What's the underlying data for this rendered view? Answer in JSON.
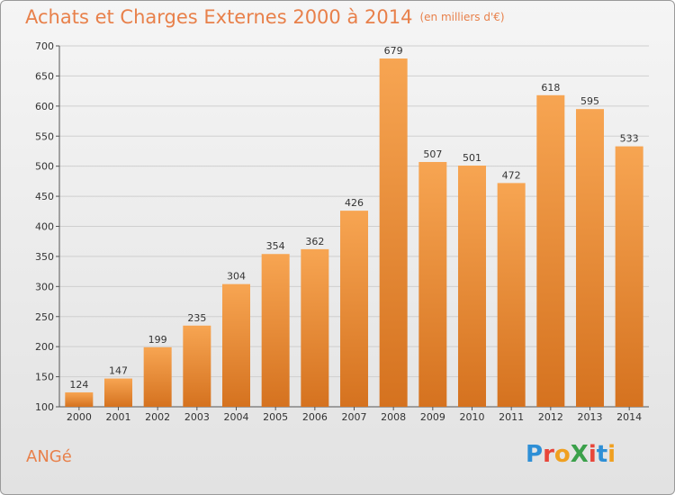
{
  "title": "Achats et Charges Externes 2000 à 2014",
  "unit": "(en milliers d'€)",
  "commune": "ANGé",
  "logo": {
    "text": "ProXiti",
    "letters": [
      {
        "char": "P",
        "color": "#2e8fd6"
      },
      {
        "char": "r",
        "color": "#e8463a"
      },
      {
        "char": "o",
        "color": "#f0a020"
      },
      {
        "char": "X",
        "color": "#3aa04a"
      },
      {
        "char": "i",
        "color": "#e8463a"
      },
      {
        "char": "t",
        "color": "#2e8fd6"
      },
      {
        "char": "i",
        "color": "#f0a020"
      }
    ]
  },
  "colors": {
    "bar_light": "#f7a552",
    "bar_dark": "#d5721f",
    "title": "#e8804a",
    "grid": "#cfcfcf"
  },
  "chart_data": {
    "type": "bar",
    "title": "Achats et Charges Externes 2000 à 2014",
    "xlabel": "",
    "ylabel": "",
    "categories": [
      "2000",
      "2001",
      "2002",
      "2003",
      "2004",
      "2005",
      "2006",
      "2007",
      "2008",
      "2009",
      "2010",
      "2011",
      "2012",
      "2013",
      "2014"
    ],
    "values": [
      124,
      147,
      199,
      235,
      304,
      354,
      362,
      426,
      679,
      507,
      501,
      472,
      618,
      595,
      533
    ],
    "ylim": [
      100,
      700
    ],
    "yticks": [
      100,
      150,
      200,
      250,
      300,
      350,
      400,
      450,
      500,
      550,
      600,
      650,
      700
    ],
    "grid": "horizontal",
    "data_labels": true
  }
}
